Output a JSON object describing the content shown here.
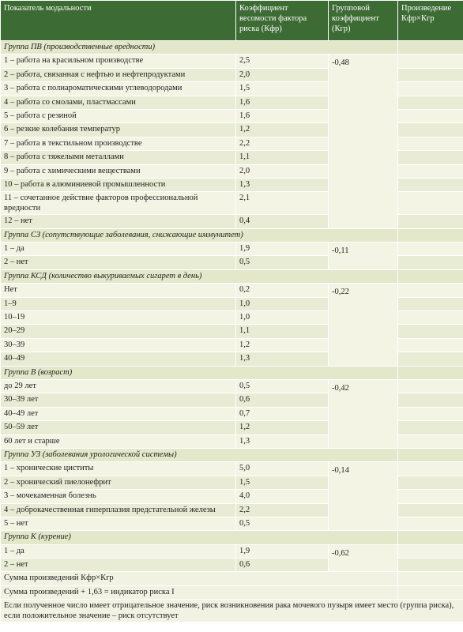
{
  "header": {
    "columns": [
      "Показатель модальности",
      "Коэффициент весомости фактора риска (Кфр)",
      "Групповой коэффициент (Кгр)",
      "Произведение Кфр×Кгр"
    ]
  },
  "groups": [
    {
      "title": "Группа ПВ (производственные вредности)",
      "coef": "-0,48",
      "rows": [
        [
          "1 – работа на красильном производстве",
          "2,5"
        ],
        [
          "2 – работа, связанная с нефтью и нефтепродуктами",
          "2,0"
        ],
        [
          "3 – работа с полиароматическими углеводородами",
          "1,5"
        ],
        [
          "4 – работа со смолами, пластмассами",
          "1,6"
        ],
        [
          "5 – работа с резиной",
          "1,6"
        ],
        [
          "6 – резкие колебания температур",
          "1,2"
        ],
        [
          "7 – работа в текстильном производстве",
          "2,2"
        ],
        [
          "8 – работа с тяжелыми металлами",
          "1,1"
        ],
        [
          "9 – работа с химическими веществами",
          "2,0"
        ],
        [
          "10 – работа в алюминиевой промышленности",
          "1,3"
        ],
        [
          "11 – сочетанное действие факторов профессиональной вредности",
          "2,1"
        ],
        [
          "12 – нет",
          "0,4"
        ]
      ]
    },
    {
      "title": "Группа СЗ (сопутствующие заболевания, снижающие иммунитет)",
      "coef": "-0,11",
      "rows": [
        [
          "1 – да",
          "1,9"
        ],
        [
          "2 – нет",
          "0,5"
        ]
      ]
    },
    {
      "title": "Группа КСД (количество выкуриваемых сигарет в день)",
      "coef": "-0,22",
      "rows": [
        [
          "Нет",
          "0,2"
        ],
        [
          "1–9",
          "1,0"
        ],
        [
          "10–19",
          "1,0"
        ],
        [
          "20–29",
          "1,1"
        ],
        [
          "30–39",
          "1,2"
        ],
        [
          "40–49",
          "1,3"
        ]
      ]
    },
    {
      "title": "Группа В (возраст)",
      "coef": "-0,42",
      "rows": [
        [
          "до 29 лет",
          "0,5"
        ],
        [
          "30–39 лет",
          "0,6"
        ],
        [
          "40–49 лет",
          "0,7"
        ],
        [
          "50–59 лет",
          "1,2"
        ],
        [
          "60 лет и старше",
          "1,3"
        ]
      ]
    },
    {
      "title": "Группа УЗ (заболевания урологической системы)",
      "coef": "-0,14",
      "rows": [
        [
          "1 – хронические циститы",
          "5,0"
        ],
        [
          "2 – хронический пиелонефрит",
          "1,5"
        ],
        [
          "3 – мочекаменная болезнь",
          "4,0"
        ],
        [
          "4 – доброкачественная гиперплазия предстательной железы",
          "2,2"
        ],
        [
          "5 – нет",
          "0,5"
        ]
      ]
    },
    {
      "title": "Группа К (курение)",
      "coef": "-0,62",
      "rows": [
        [
          "1 – да",
          "1,9"
        ],
        [
          "2 – нет",
          "0,6"
        ]
      ]
    }
  ],
  "footer": [
    "Сумма произведений Кфр×Кгр",
    "Сумма произведений + 1,63 = индикатор риска I",
    "Если полученное число имеет отрицательное значение, риск возникновения рака мочевого пузыря имеет место (группа риска), если положительное значение – риск отсутствует"
  ]
}
